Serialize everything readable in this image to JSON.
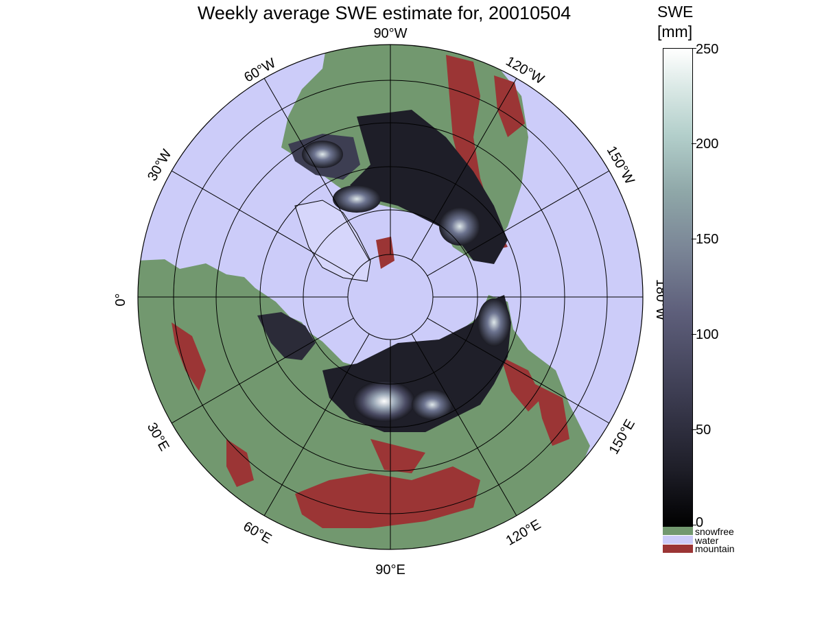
{
  "title": "Weekly average SWE estimate for, 20010504",
  "longitude_labels": {
    "w90": "90°W",
    "w60": "60°W",
    "w120": "120°W",
    "w30": "30°W",
    "w150": "150°W",
    "zero": "0°",
    "w180": "180°W",
    "e30": "30°E",
    "e150": "150°E",
    "e60": "60°E",
    "e120": "120°E",
    "e90": "90°E"
  },
  "colorbar": {
    "title_line1": "SWE",
    "title_line2": "[mm]",
    "ticks": [
      {
        "value": 250,
        "label": "250"
      },
      {
        "value": 200,
        "label": "200"
      },
      {
        "value": 150,
        "label": "150"
      },
      {
        "value": 100,
        "label": "100"
      },
      {
        "value": 50,
        "label": "50"
      },
      {
        "value": 0,
        "label": "0"
      }
    ],
    "range": [
      0,
      250
    ],
    "categories": [
      {
        "label": "snowfree",
        "color": "#72986f"
      },
      {
        "label": "water",
        "color": "#ccccf9"
      },
      {
        "label": "mountain",
        "color": "#9b3535"
      }
    ]
  },
  "colors": {
    "water": "#ccccf9",
    "land": "#72986f",
    "mountain": "#9b3535",
    "snow_low": "#141418",
    "snow_high": "#ffffff"
  }
}
